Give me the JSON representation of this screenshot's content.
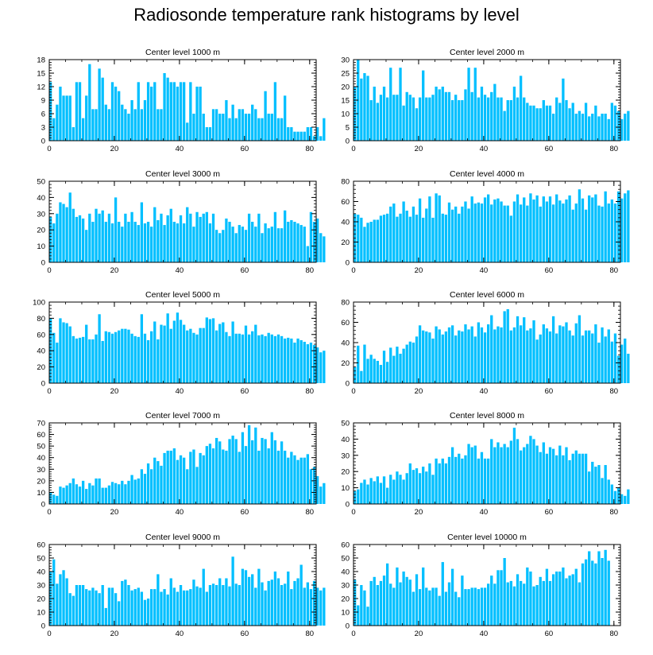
{
  "title": "Radiosonde temperature rank histograms by level",
  "bar_color": "#00bfff",
  "chart_data": [
    {
      "type": "bar",
      "title": "Center level 1000 m",
      "xlabel": "",
      "ylabel": "",
      "xlim": [
        0,
        82
      ],
      "ylim": [
        0,
        18
      ],
      "yticks": [
        0,
        3,
        6,
        9,
        12,
        15,
        18
      ],
      "xticks": [
        0,
        20,
        40,
        60,
        80
      ],
      "values": [
        13,
        5,
        8,
        12,
        10,
        10,
        10,
        3,
        13,
        13,
        5,
        10,
        17,
        7,
        7,
        16,
        14,
        8,
        7,
        13,
        12,
        11,
        8,
        7,
        6,
        9,
        7,
        13,
        7,
        9,
        13,
        12,
        13,
        7,
        7,
        15,
        14,
        13,
        13,
        12,
        13,
        13,
        4,
        13,
        6,
        12,
        12,
        6,
        3,
        3,
        7,
        7,
        6,
        6,
        9,
        5,
        8,
        5,
        7,
        7,
        6,
        6,
        8,
        7,
        5,
        5,
        11,
        6,
        6,
        13,
        5,
        5,
        10,
        3,
        3,
        2,
        2,
        2,
        2,
        3,
        3,
        1,
        3,
        1,
        5
      ]
    },
    {
      "type": "bar",
      "title": "Center level 2000 m",
      "xlabel": "",
      "ylabel": "",
      "xlim": [
        0,
        82
      ],
      "ylim": [
        0,
        30
      ],
      "yticks": [
        0,
        5,
        10,
        15,
        20,
        25,
        30
      ],
      "xticks": [
        0,
        20,
        40,
        60,
        80
      ],
      "values": [
        20,
        30,
        23,
        25,
        24,
        15,
        20,
        14,
        17,
        20,
        16,
        27,
        17,
        17,
        27,
        13,
        18,
        17,
        16,
        12,
        16,
        26,
        16,
        16,
        17,
        20,
        19,
        20,
        18,
        18,
        15,
        17,
        15,
        15,
        19,
        27,
        18,
        27,
        16,
        20,
        17,
        16,
        18,
        21,
        16,
        16,
        11,
        15,
        15,
        20,
        16,
        24,
        16,
        14,
        13,
        13,
        12,
        12,
        15,
        13,
        13,
        10,
        16,
        14,
        23,
        15,
        12,
        14,
        10,
        11,
        10,
        14,
        9,
        10,
        13,
        9,
        10,
        10,
        8,
        14,
        13,
        11,
        8,
        10,
        11
      ]
    },
    {
      "type": "bar",
      "title": "Center level 3000 m",
      "xlabel": "",
      "ylabel": "",
      "xlim": [
        0,
        82
      ],
      "ylim": [
        0,
        50
      ],
      "yticks": [
        0,
        10,
        20,
        30,
        40,
        50
      ],
      "xticks": [
        0,
        20,
        40,
        60,
        80
      ],
      "values": [
        28,
        24,
        30,
        37,
        36,
        34,
        43,
        33,
        28,
        29,
        27,
        20,
        30,
        25,
        33,
        30,
        32,
        25,
        30,
        24,
        40,
        25,
        22,
        30,
        25,
        31,
        25,
        23,
        37,
        24,
        25,
        22,
        34,
        26,
        30,
        23,
        29,
        33,
        25,
        24,
        29,
        24,
        34,
        30,
        22,
        31,
        28,
        30,
        31,
        24,
        30,
        20,
        18,
        20,
        27,
        25,
        22,
        18,
        23,
        22,
        20,
        30,
        25,
        22,
        30,
        18,
        24,
        21,
        22,
        31,
        21,
        21,
        32,
        25,
        26,
        25,
        24,
        23,
        22,
        10,
        31,
        25,
        27,
        18,
        16
      ]
    },
    {
      "type": "bar",
      "title": "Center level 4000 m",
      "xlabel": "",
      "ylabel": "",
      "xlim": [
        0,
        82
      ],
      "ylim": [
        0,
        80
      ],
      "yticks": [
        0,
        20,
        40,
        60,
        80
      ],
      "xticks": [
        0,
        20,
        40,
        60,
        80
      ],
      "values": [
        48,
        47,
        44,
        35,
        39,
        40,
        42,
        42,
        46,
        47,
        48,
        55,
        58,
        45,
        48,
        60,
        51,
        45,
        55,
        47,
        63,
        44,
        53,
        65,
        44,
        68,
        66,
        48,
        47,
        59,
        52,
        55,
        48,
        55,
        60,
        53,
        65,
        58,
        59,
        58,
        64,
        67,
        57,
        62,
        63,
        60,
        56,
        56,
        46,
        60,
        67,
        57,
        64,
        56,
        68,
        62,
        66,
        55,
        65,
        60,
        65,
        57,
        67,
        61,
        58,
        62,
        66,
        52,
        58,
        72,
        63,
        52,
        66,
        64,
        67,
        56,
        55,
        70,
        58,
        62,
        58,
        70,
        63,
        68,
        71
      ]
    },
    {
      "type": "bar",
      "title": "Center level 5000 m",
      "xlabel": "",
      "ylabel": "",
      "xlim": [
        0,
        82
      ],
      "ylim": [
        0,
        100
      ],
      "yticks": [
        0,
        20,
        40,
        60,
        80,
        100
      ],
      "xticks": [
        0,
        20,
        40,
        60,
        80
      ],
      "values": [
        80,
        62,
        50,
        80,
        75,
        74,
        70,
        58,
        55,
        56,
        57,
        72,
        54,
        54,
        60,
        85,
        52,
        64,
        63,
        61,
        63,
        65,
        67,
        67,
        66,
        61,
        58,
        57,
        85,
        61,
        53,
        64,
        76,
        54,
        72,
        71,
        86,
        67,
        77,
        87,
        78,
        72,
        65,
        67,
        62,
        60,
        68,
        68,
        81,
        79,
        80,
        65,
        73,
        75,
        63,
        58,
        76,
        61,
        61,
        60,
        71,
        60,
        64,
        72,
        59,
        60,
        58,
        62,
        60,
        58,
        60,
        58,
        55,
        56,
        55,
        50,
        55,
        53,
        51,
        48,
        50,
        47,
        44,
        38,
        40
      ]
    },
    {
      "type": "bar",
      "title": "Center level 6000 m",
      "xlabel": "",
      "ylabel": "",
      "xlim": [
        0,
        82
      ],
      "ylim": [
        0,
        80
      ],
      "yticks": [
        0,
        20,
        40,
        60,
        80
      ],
      "xticks": [
        0,
        20,
        40,
        60,
        80
      ],
      "values": [
        16,
        37,
        12,
        38,
        24,
        28,
        24,
        22,
        18,
        32,
        21,
        35,
        27,
        36,
        29,
        34,
        38,
        41,
        40,
        46,
        57,
        52,
        51,
        50,
        44,
        56,
        53,
        48,
        51,
        55,
        57,
        47,
        52,
        51,
        58,
        53,
        56,
        46,
        60,
        55,
        50,
        58,
        67,
        53,
        56,
        55,
        71,
        73,
        52,
        55,
        66,
        57,
        65,
        52,
        54,
        62,
        43,
        48,
        58,
        54,
        51,
        66,
        49,
        57,
        56,
        60,
        52,
        47,
        59,
        67,
        47,
        52,
        52,
        49,
        58,
        40,
        55,
        46,
        53,
        41,
        49,
        27,
        38,
        44,
        29
      ]
    },
    {
      "type": "bar",
      "title": "Center level 7000 m",
      "xlabel": "",
      "ylabel": "",
      "xlim": [
        0,
        82
      ],
      "ylim": [
        0,
        70
      ],
      "yticks": [
        0,
        10,
        20,
        30,
        40,
        50,
        60,
        70
      ],
      "xticks": [
        0,
        20,
        40,
        60,
        80
      ],
      "values": [
        10,
        8,
        7,
        15,
        14,
        16,
        18,
        22,
        17,
        15,
        20,
        13,
        18,
        16,
        22,
        22,
        14,
        14,
        16,
        19,
        18,
        17,
        20,
        17,
        20,
        25,
        21,
        22,
        30,
        26,
        35,
        30,
        40,
        37,
        33,
        44,
        46,
        46,
        48,
        38,
        42,
        40,
        30,
        45,
        47,
        32,
        44,
        42,
        50,
        52,
        48,
        57,
        54,
        47,
        46,
        56,
        59,
        56,
        45,
        62,
        50,
        68,
        55,
        66,
        46,
        57,
        56,
        48,
        62,
        55,
        46,
        54,
        46,
        40,
        45,
        42,
        38,
        40,
        40,
        43,
        30,
        32,
        24,
        15,
        18
      ]
    },
    {
      "type": "bar",
      "title": "Center level 8000 m",
      "xlabel": "",
      "ylabel": "",
      "xlim": [
        0,
        82
      ],
      "ylim": [
        0,
        50
      ],
      "yticks": [
        0,
        10,
        20,
        30,
        40,
        50
      ],
      "xticks": [
        0,
        20,
        40,
        60,
        80
      ],
      "values": [
        8,
        9,
        13,
        15,
        12,
        16,
        14,
        17,
        13,
        17,
        10,
        18,
        15,
        20,
        18,
        15,
        19,
        25,
        21,
        22,
        19,
        23,
        20,
        25,
        18,
        28,
        25,
        28,
        25,
        29,
        35,
        29,
        31,
        28,
        30,
        37,
        35,
        36,
        28,
        32,
        28,
        28,
        40,
        35,
        38,
        35,
        37,
        35,
        39,
        47,
        40,
        33,
        35,
        37,
        42,
        40,
        36,
        32,
        38,
        31,
        35,
        34,
        30,
        36,
        30,
        35,
        27,
        31,
        33,
        31,
        31,
        31,
        20,
        26,
        23,
        24,
        16,
        24,
        15,
        12,
        8,
        10,
        6,
        5,
        9
      ]
    },
    {
      "type": "bar",
      "title": "Center level 9000 m",
      "xlabel": "",
      "ylabel": "",
      "xlim": [
        0,
        82
      ],
      "ylim": [
        0,
        60
      ],
      "yticks": [
        0,
        10,
        20,
        30,
        40,
        50,
        60
      ],
      "xticks": [
        0,
        20,
        40,
        60,
        80
      ],
      "values": [
        40,
        49,
        31,
        38,
        41,
        35,
        24,
        22,
        30,
        30,
        30,
        27,
        26,
        28,
        26,
        24,
        30,
        13,
        28,
        28,
        24,
        18,
        33,
        34,
        30,
        26,
        27,
        28,
        25,
        19,
        20,
        27,
        27,
        38,
        25,
        27,
        23,
        35,
        28,
        25,
        30,
        26,
        26,
        27,
        34,
        29,
        28,
        42,
        25,
        30,
        31,
        30,
        35,
        30,
        35,
        29,
        51,
        31,
        30,
        42,
        41,
        36,
        38,
        28,
        42,
        32,
        26,
        33,
        34,
        40,
        35,
        30,
        31,
        40,
        27,
        33,
        35,
        45,
        28,
        32,
        27,
        33,
        28,
        26,
        28
      ]
    },
    {
      "type": "bar",
      "title": "Center level 10000 m",
      "xlabel": "",
      "ylabel": "",
      "xlim": [
        0,
        82
      ],
      "ylim": [
        0,
        60
      ],
      "yticks": [
        0,
        10,
        20,
        30,
        40,
        50,
        60
      ],
      "xticks": [
        0,
        20,
        40,
        60,
        80
      ],
      "values": [
        34,
        15,
        30,
        26,
        14,
        33,
        36,
        30,
        33,
        37,
        46,
        31,
        28,
        43,
        32,
        40,
        36,
        34,
        25,
        38,
        27,
        43,
        28,
        26,
        28,
        28,
        22,
        47,
        25,
        32,
        42,
        25,
        21,
        37,
        27,
        27,
        28,
        28,
        27,
        28,
        28,
        31,
        37,
        31,
        41,
        41,
        50,
        32,
        33,
        29,
        38,
        33,
        31,
        43,
        40,
        29,
        30,
        36,
        33,
        42,
        33,
        38,
        40,
        40,
        43,
        35,
        37,
        38,
        42,
        32,
        46,
        49,
        55,
        48,
        46,
        55,
        50,
        56,
        48
      ]
    }
  ]
}
